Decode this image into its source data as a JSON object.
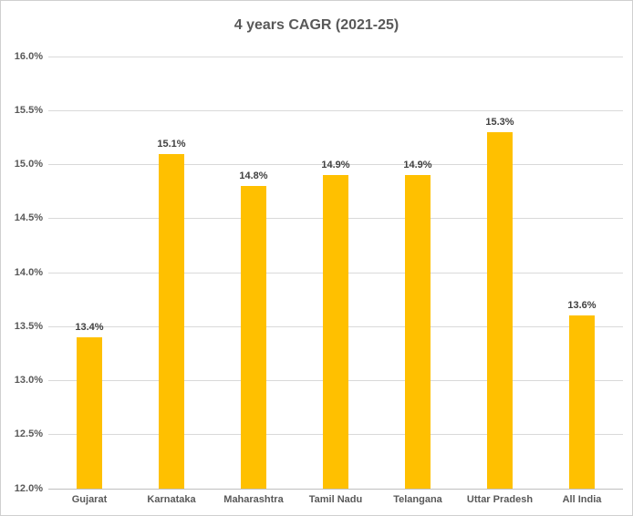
{
  "chart_data": {
    "type": "bar",
    "title": "4 years CAGR (2021-25)",
    "categories": [
      "Gujarat",
      "Karnataka",
      "Maharashtra",
      "Tamil Nadu",
      "Telangana",
      "Uttar Pradesh",
      "All India"
    ],
    "values": [
      13.4,
      15.1,
      14.8,
      14.9,
      14.9,
      15.3,
      13.6
    ],
    "data_labels": [
      "13.4%",
      "15.1%",
      "14.8%",
      "14.9%",
      "14.9%",
      "15.3%",
      "13.6%"
    ],
    "xlabel": "",
    "ylabel": "",
    "ylim": [
      12.0,
      16.0
    ],
    "ytick_step": 0.5,
    "ytick_labels": [
      "12.0%",
      "12.5%",
      "13.0%",
      "13.5%",
      "14.0%",
      "14.5%",
      "15.0%",
      "15.5%",
      "16.0%"
    ],
    "grid": true,
    "legend_position": "none",
    "colors": {
      "bar_fill": "#FFC000",
      "gridline": "#D9D9D9",
      "axis_line": "#BFBFBF",
      "title_text": "#595959",
      "tick_text": "#595959",
      "data_label_text": "#404040",
      "background": "#FFFFFF",
      "border": "#CFCFCF"
    }
  }
}
